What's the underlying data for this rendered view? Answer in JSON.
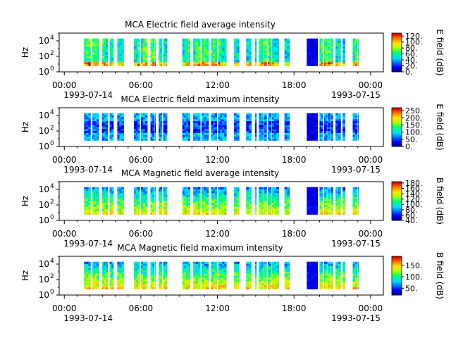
{
  "chart_data": [
    {
      "type": "heatmap",
      "title": "MCA  Electric field average intensity",
      "ylabel": "Hz",
      "y_scale": "log",
      "ylim": [
        1,
        100000
      ],
      "y_ticks": [
        {
          "base": "10",
          "exp": "0"
        },
        {
          "base": "10",
          "exp": "2"
        },
        {
          "base": "10",
          "exp": "4"
        }
      ],
      "x_ticks": [
        "00:00",
        "06:00",
        "12:00",
        "18:00",
        "00:00"
      ],
      "x_dates": [
        "1993-07-14",
        "1993-07-15"
      ],
      "colorbar_label": "E field (dB)",
      "colorbar_range": [
        0,
        130
      ],
      "colorbar_ticks": [
        "0.",
        "20.",
        "40.",
        "60.",
        "80.",
        "100.",
        "120."
      ],
      "base_level": 0.45
    },
    {
      "type": "heatmap",
      "title": "MCA  Electric field maximum intensity",
      "ylabel": "Hz",
      "y_scale": "log",
      "ylim": [
        1,
        100000
      ],
      "y_ticks": [
        {
          "base": "10",
          "exp": "0"
        },
        {
          "base": "10",
          "exp": "2"
        },
        {
          "base": "10",
          "exp": "4"
        }
      ],
      "x_ticks": [
        "00:00",
        "06:00",
        "12:00",
        "18:00",
        "00:00"
      ],
      "x_dates": [
        "1993-07-14",
        "1993-07-15"
      ],
      "colorbar_label": "E field (dB)",
      "colorbar_range": [
        0,
        270
      ],
      "colorbar_ticks": [
        "0.",
        "50.",
        "100.",
        "150.",
        "200.",
        "250."
      ],
      "base_level": 0.3
    },
    {
      "type": "heatmap",
      "title": "MCA  Magnetic field average intensity",
      "ylabel": "Hz",
      "y_scale": "log",
      "ylim": [
        1,
        100000
      ],
      "y_ticks": [
        {
          "base": "10",
          "exp": "0"
        },
        {
          "base": "10",
          "exp": "2"
        },
        {
          "base": "10",
          "exp": "4"
        }
      ],
      "x_ticks": [
        "00:00",
        "06:00",
        "12:00",
        "18:00",
        "00:00"
      ],
      "x_dates": [
        "1993-07-14",
        "1993-07-15"
      ],
      "colorbar_label": "B field (dB)",
      "colorbar_range": [
        40,
        185
      ],
      "colorbar_ticks": [
        "40.",
        "60.",
        "80.",
        "100.",
        "120.",
        "140.",
        "160.",
        "180."
      ],
      "base_level": 0.42
    },
    {
      "type": "heatmap",
      "title": "MCA  Magnetic field maximum intensity",
      "ylabel": "Hz",
      "y_scale": "log",
      "ylim": [
        1,
        100000
      ],
      "y_ticks": [
        {
          "base": "10",
          "exp": "0"
        },
        {
          "base": "10",
          "exp": "2"
        },
        {
          "base": "10",
          "exp": "4"
        }
      ],
      "x_ticks": [
        "00:00",
        "06:00",
        "12:00",
        "18:00",
        "00:00"
      ],
      "x_dates": [
        "1993-07-14",
        "1993-07-15"
      ],
      "colorbar_label": "B field (dB)",
      "colorbar_range": [
        20,
        190
      ],
      "colorbar_ticks": [
        "50.",
        "100.",
        "150."
      ],
      "base_level": 0.45
    }
  ],
  "data_segments_hours": [
    [
      1.55,
      2.05
    ],
    [
      2.2,
      2.7
    ],
    [
      2.95,
      3.4
    ],
    [
      3.55,
      3.85
    ],
    [
      4.15,
      4.65
    ],
    [
      5.45,
      5.9
    ],
    [
      6.0,
      6.5
    ],
    [
      6.75,
      7.05
    ],
    [
      7.1,
      7.15
    ],
    [
      7.4,
      7.65
    ],
    [
      7.75,
      8.05
    ],
    [
      9.25,
      9.85
    ],
    [
      10.1,
      10.65
    ],
    [
      10.75,
      11.3
    ],
    [
      11.5,
      11.95
    ],
    [
      12.05,
      12.7
    ],
    [
      13.3,
      13.7
    ],
    [
      14.25,
      14.65
    ],
    [
      14.95,
      15.05
    ],
    [
      15.25,
      15.6
    ],
    [
      15.65,
      15.85
    ],
    [
      15.95,
      16.2
    ],
    [
      16.25,
      16.8
    ],
    [
      17.25,
      17.65
    ],
    [
      19.0,
      19.85
    ],
    [
      20.0,
      20.25
    ],
    [
      20.35,
      20.6
    ],
    [
      20.65,
      20.85
    ],
    [
      20.9,
      21.05
    ],
    [
      21.25,
      21.65
    ],
    [
      21.8,
      22.0
    ],
    [
      22.6,
      22.95
    ],
    [
      23.0,
      23.05
    ]
  ],
  "high_freq_cutoff": 20000,
  "low_freq_cutoff": 6
}
